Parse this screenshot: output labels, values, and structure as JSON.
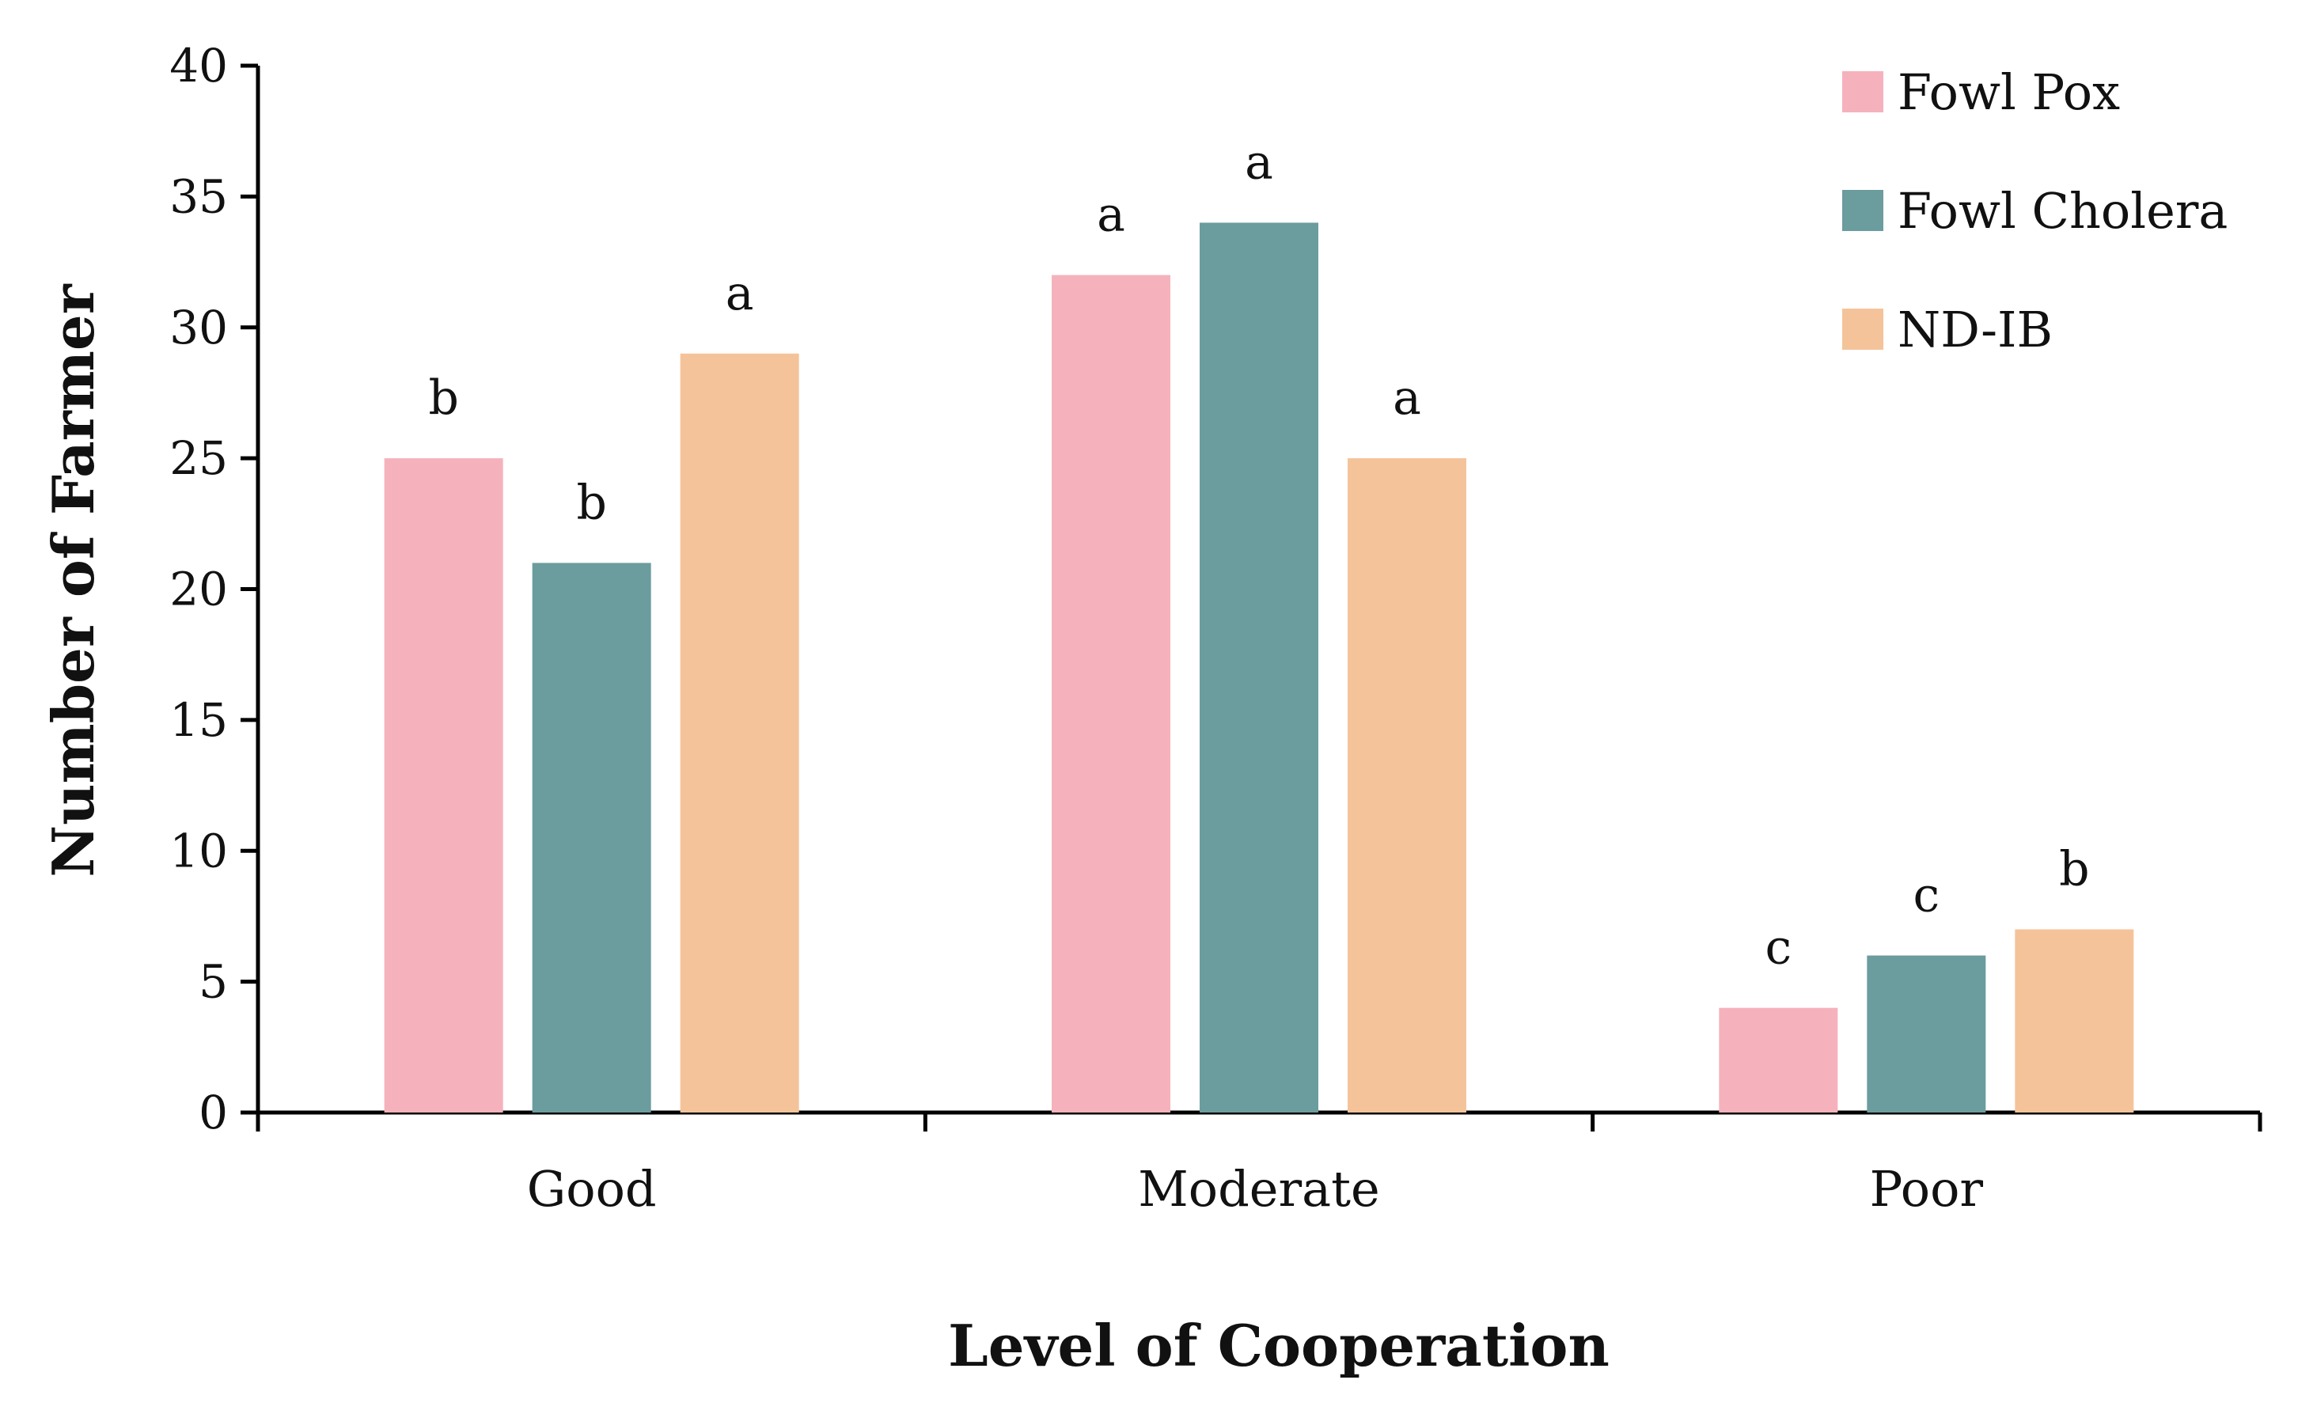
{
  "colors": {
    "Fowl Pox": "#f5b2bc",
    "Fowl Cholera": "#6b9c9e",
    "ND-IB": "#f5c39a"
  },
  "chart_data": {
    "type": "bar",
    "title": "",
    "xlabel": "Level of Cooperation",
    "ylabel": "Number of Farmer",
    "categories": [
      "Good",
      "Moderate",
      "Poor"
    ],
    "ylim": [
      0,
      40
    ],
    "yticks": [
      0,
      5,
      10,
      15,
      20,
      25,
      30,
      35,
      40
    ],
    "grid": false,
    "legend_position": "top-right",
    "series": [
      {
        "name": "Fowl Pox",
        "values": [
          25,
          32,
          4
        ],
        "labels": [
          "b",
          "a",
          "c"
        ]
      },
      {
        "name": "Fowl Cholera",
        "values": [
          21,
          34,
          6
        ],
        "labels": [
          "b",
          "a",
          "c"
        ]
      },
      {
        "name": "ND-IB",
        "values": [
          29,
          25,
          7
        ],
        "labels": [
          "a",
          "a",
          "b"
        ]
      }
    ]
  }
}
